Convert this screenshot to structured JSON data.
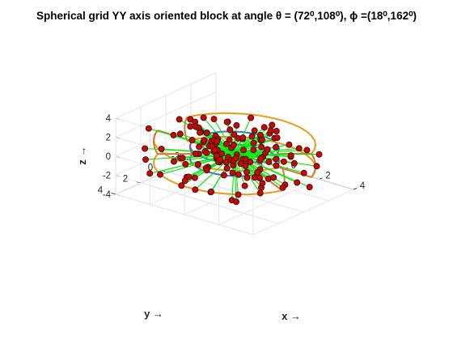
{
  "chart_data": {
    "type": "scatter",
    "subtype": "3d-scatter-with-wireframe",
    "title": "Spherical grid YY axis oriented block at angle θ = (72⁰,108⁰), ϕ =(18⁰,162⁰)",
    "xlabel": "x →",
    "ylabel": "y →",
    "zlabel": "z →",
    "xlim": [
      -4,
      4
    ],
    "ylim": [
      -4,
      4
    ],
    "zlim": [
      -4,
      4
    ],
    "x_ticks": [
      "-4",
      "-2",
      "0",
      "2",
      "4"
    ],
    "y_ticks": [
      "-4",
      "-2",
      "0",
      "2",
      "4"
    ],
    "z_ticks": [
      "-4",
      "-2",
      "0",
      "2",
      "4"
    ],
    "grid": true,
    "view": "3d-isometric",
    "theta_range_deg": [
      72,
      108
    ],
    "phi_range_deg": [
      18,
      162
    ],
    "marker_color": "#d40000",
    "spoke_color": "#00ee00",
    "block_edge_colors": [
      "#ee9a18",
      "#3a78c8",
      "#a040b0",
      "#d47a30"
    ]
  }
}
